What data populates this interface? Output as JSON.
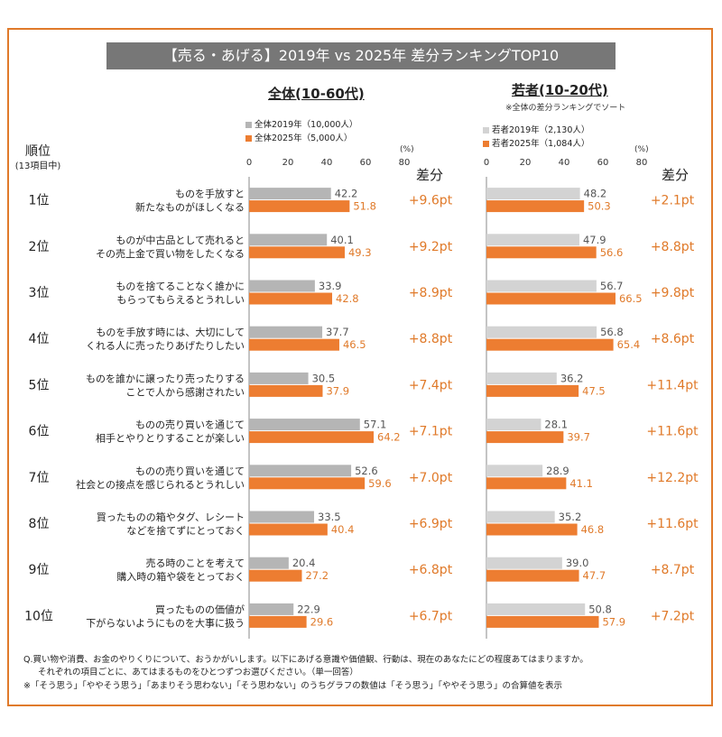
{
  "title": "【売る・あげる】2019年 vs 2025年 差分ランキングTOP10",
  "left_panel": {
    "title": "全体(10-60代)",
    "legend": [
      "全体2019年（10,000人）",
      "全体2025年（5,000人）"
    ],
    "unit": "(%)",
    "diff_header": "差分"
  },
  "right_panel": {
    "title": "若者(10-20代)",
    "subnote": "※全体の差分ランキングでソート",
    "legend": [
      "若者2019年（2,130人）",
      "若者2025年（1,084人）"
    ],
    "unit": "(%)",
    "diff_header": "差分"
  },
  "rank_header": "順位",
  "rank_subheader": "(13項目中)",
  "colors": {
    "y2019_all": "#b5b5b5",
    "y2019_young": "#d3d3d3",
    "y2025": "#ed7d31",
    "diff_text": "#e07a2a",
    "frame": "#e07a2a",
    "title_bg": "#777777"
  },
  "chart_data": {
    "type": "bar",
    "xlim": [
      0,
      80
    ],
    "ticks": [
      0,
      20,
      40,
      60,
      80
    ],
    "ranks": [
      "1位",
      "2位",
      "3位",
      "4位",
      "5位",
      "6位",
      "7位",
      "8位",
      "9位",
      "10位"
    ],
    "categories": [
      [
        "ものを手放すと",
        "新たなものがほしくなる"
      ],
      [
        "ものが中古品として売れると",
        "その売上金で買い物をしたくなる"
      ],
      [
        "ものを捨てることなく誰かに",
        "もらってもらえるとうれしい"
      ],
      [
        "ものを手放す時には、大切にして",
        "くれる人に売ったりあげたりしたい"
      ],
      [
        "ものを誰かに譲ったり売ったりする",
        "ことで人から感謝されたい"
      ],
      [
        "ものの売り買いを通じて",
        "相手とやりとりすることが楽しい"
      ],
      [
        "ものの売り買いを通じて",
        "社会との接点を感じられるとうれしい"
      ],
      [
        "買ったものの箱やタグ、レシート",
        "などを捨てずにとっておく"
      ],
      [
        "売る時のことを考えて",
        "購入時の箱や袋をとっておく"
      ],
      [
        "買ったものの価値が",
        "下がらないようにものを大事に扱う"
      ]
    ],
    "all": {
      "series": [
        {
          "name": "全体2019年（10,000人）",
          "values": [
            42.2,
            40.1,
            33.9,
            37.7,
            30.5,
            57.1,
            52.6,
            33.5,
            20.4,
            22.9
          ]
        },
        {
          "name": "全体2025年（5,000人）",
          "values": [
            51.8,
            49.3,
            42.8,
            46.5,
            37.9,
            64.2,
            59.6,
            40.4,
            27.2,
            29.6
          ]
        }
      ],
      "diff": [
        "+9.6pt",
        "+9.2pt",
        "+8.9pt",
        "+8.8pt",
        "+7.4pt",
        "+7.1pt",
        "+7.0pt",
        "+6.9pt",
        "+6.8pt",
        "+6.7pt"
      ]
    },
    "young": {
      "series": [
        {
          "name": "若者2019年（2,130人）",
          "values": [
            48.2,
            47.9,
            56.7,
            56.8,
            36.2,
            28.1,
            28.9,
            35.2,
            39.0,
            50.8
          ]
        },
        {
          "name": "若者2025年（1,084人）",
          "values": [
            50.3,
            56.6,
            66.5,
            65.4,
            47.5,
            39.7,
            41.1,
            46.8,
            47.7,
            57.9
          ]
        }
      ],
      "diff": [
        "+2.1pt",
        "+8.8pt",
        "+9.8pt",
        "+8.6pt",
        "+11.4pt",
        "+11.6pt",
        "+12.2pt",
        "+11.6pt",
        "+8.7pt",
        "+7.2pt"
      ]
    }
  },
  "notes": [
    "Q.買い物や消費、お金のやりくりについて、おうかがいします。以下にあげる意識や価値観、行動は、現在のあなたにどの程度あてはまりますか。",
    "それぞれの項目ごとに、あてはまるものをひとつずつお選びください。（単一回答）",
    "※「そう思う」「ややそう思う」「あまりそう思わない」「そう思わない」のうちグラフの数値は「そう思う」「ややそう思う」の合算値を表示"
  ]
}
